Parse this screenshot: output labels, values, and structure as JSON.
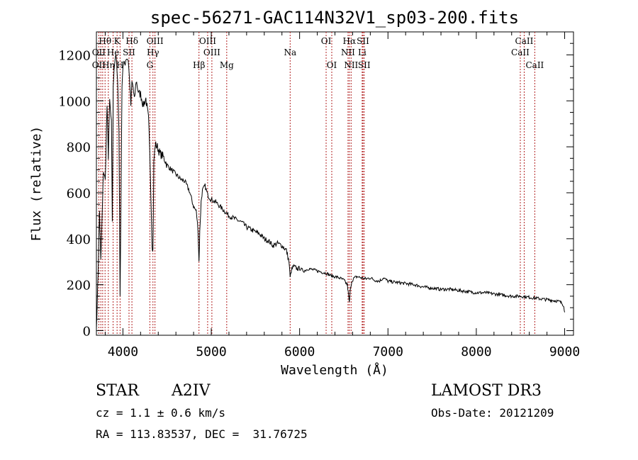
{
  "chart_data": {
    "type": "line",
    "title": "spec-56271-GAC114N32V1_sp03-200.fits",
    "xlabel": "Wavelength (Å)",
    "ylabel": "Flux (relative)",
    "xlim": [
      3700,
      9100
    ],
    "ylim": [
      -20,
      1300
    ],
    "xticks": [
      4000,
      5000,
      6000,
      7000,
      8000,
      9000
    ],
    "xtick_labels": [
      "4000",
      "5000",
      "6000",
      "7000",
      "8000",
      "9000"
    ],
    "yticks": [
      0,
      200,
      400,
      600,
      800,
      1000,
      1200
    ],
    "ytick_labels": [
      "0",
      "200",
      "400",
      "600",
      "800",
      "1000",
      "1200"
    ],
    "grid": false,
    "series": [
      {
        "name": "flux",
        "x": [
          3700,
          3720,
          3735,
          3750,
          3770,
          3780,
          3800,
          3820,
          3835,
          3850,
          3870,
          3880,
          3890,
          3900,
          3920,
          3940,
          3955,
          3968,
          3990,
          4000,
          4020,
          4040,
          4060,
          4080,
          4090,
          4102,
          4115,
          4130,
          4150,
          4180,
          4200,
          4230,
          4260,
          4290,
          4310,
          4330,
          4340,
          4350,
          4365,
          4390,
          4420,
          4450,
          4480,
          4500,
          4550,
          4600,
          4650,
          4700,
          4750,
          4800,
          4830,
          4850,
          4861,
          4870,
          4885,
          4900,
          4930,
          4960,
          5000,
          5050,
          5100,
          5150,
          5200,
          5250,
          5300,
          5350,
          5400,
          5450,
          5500,
          5550,
          5600,
          5650,
          5700,
          5750,
          5800,
          5850,
          5880,
          5893,
          5905,
          5930,
          5970,
          6000,
          6050,
          6100,
          6150,
          6200,
          6250,
          6300,
          6350,
          6400,
          6450,
          6500,
          6540,
          6555,
          6563,
          6572,
          6590,
          6620,
          6650,
          6700,
          6750,
          6800,
          6850,
          6900,
          6950,
          7000,
          7100,
          7200,
          7300,
          7400,
          7500,
          7600,
          7700,
          7800,
          7900,
          8000,
          8100,
          8200,
          8300,
          8400,
          8500,
          8600,
          8700,
          8800,
          8900,
          8950,
          8990,
          9000
        ],
        "y": [
          10,
          260,
          520,
          300,
          560,
          700,
          650,
          980,
          760,
          1000,
          900,
          480,
          1050,
          1150,
          1210,
          1080,
          880,
          150,
          1080,
          1150,
          1160,
          1190,
          1180,
          1060,
          980,
          1080,
          1060,
          1000,
          1090,
          1030,
          1030,
          980,
          1010,
          920,
          700,
          380,
          350,
          730,
          810,
          800,
          770,
          760,
          740,
          720,
          700,
          680,
          660,
          650,
          610,
          540,
          520,
          440,
          300,
          430,
          560,
          610,
          630,
          590,
          570,
          560,
          540,
          520,
          500,
          490,
          480,
          470,
          450,
          440,
          430,
          420,
          400,
          390,
          370,
          380,
          370,
          350,
          300,
          230,
          260,
          280,
          270,
          270,
          260,
          270,
          265,
          260,
          255,
          250,
          240,
          235,
          230,
          220,
          200,
          150,
          120,
          170,
          215,
          230,
          235,
          230,
          225,
          230,
          220,
          215,
          230,
          215,
          210,
          205,
          200,
          190,
          185,
          180,
          180,
          175,
          170,
          165,
          165,
          160,
          155,
          150,
          150,
          145,
          140,
          135,
          130,
          125,
          110,
          80
        ]
      }
    ],
    "line_markers": {
      "labels": [
        {
          "text": "Hθ",
          "x": 3798,
          "row": 1
        },
        {
          "text": "OII",
          "x": 3727,
          "row": 2
        },
        {
          "text": "OII",
          "x": 3727,
          "row": 3
        },
        {
          "text": "Hη",
          "x": 3835,
          "row": 3
        },
        {
          "text": "He",
          "x": 3889,
          "row": 2
        },
        {
          "text": "K",
          "x": 3934,
          "row": 1
        },
        {
          "text": "H",
          "x": 3968,
          "row": 3
        },
        {
          "text": "SII",
          "x": 4069,
          "row": 2
        },
        {
          "text": "Hδ",
          "x": 4102,
          "row": 1
        },
        {
          "text": "OIII",
          "x": 4363,
          "row": 1
        },
        {
          "text": "Hγ",
          "x": 4340,
          "row": 2
        },
        {
          "text": "G",
          "x": 4305,
          "row": 3
        },
        {
          "text": "OIII",
          "x": 4959,
          "row": 1
        },
        {
          "text": "OIII",
          "x": 5007,
          "row": 2
        },
        {
          "text": "Hβ",
          "x": 4861,
          "row": 3
        },
        {
          "text": "Mg",
          "x": 5175,
          "row": 3
        },
        {
          "text": "Na",
          "x": 5893,
          "row": 2
        },
        {
          "text": "OI",
          "x": 6300,
          "row": 1
        },
        {
          "text": "OI",
          "x": 6364,
          "row": 3
        },
        {
          "text": "Hα",
          "x": 6563,
          "row": 1
        },
        {
          "text": "NII",
          "x": 6548,
          "row": 2
        },
        {
          "text": "NII",
          "x": 6583,
          "row": 3
        },
        {
          "text": "SII",
          "x": 6717,
          "row": 1
        },
        {
          "text": "Li",
          "x": 6708,
          "row": 2
        },
        {
          "text": "SII",
          "x": 6731,
          "row": 3
        },
        {
          "text": "CaII",
          "x": 8542,
          "row": 1
        },
        {
          "text": "CaII",
          "x": 8498,
          "row": 2
        },
        {
          "text": "CaII",
          "x": 8662,
          "row": 3
        }
      ],
      "lines_x": [
        3727,
        3750,
        3771,
        3798,
        3835,
        3889,
        3934,
        3968,
        4069,
        4102,
        4305,
        4340,
        4363,
        4861,
        4959,
        5007,
        5175,
        5893,
        6300,
        6364,
        6548,
        6563,
        6583,
        6708,
        6717,
        6731,
        8498,
        8542,
        8662
      ],
      "color": "#b22222"
    }
  },
  "info": {
    "object_class": "STAR",
    "subclass": "A2IV",
    "survey": "LAMOST DR3",
    "cz": "cz = 1.1 ± 0.6 km/s",
    "obs_date": "Obs-Date: 20121209",
    "coords": "RA = 113.83537, DEC =  31.76725"
  }
}
